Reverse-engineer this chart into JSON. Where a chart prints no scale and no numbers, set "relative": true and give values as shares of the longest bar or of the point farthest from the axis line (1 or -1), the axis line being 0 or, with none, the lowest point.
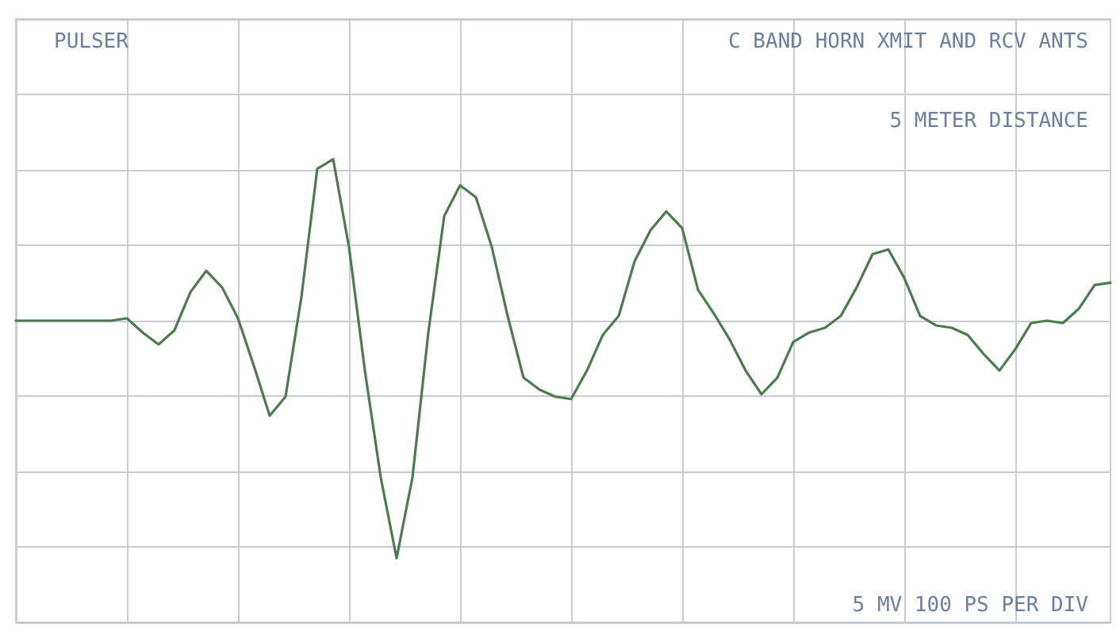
{
  "chart_data": {
    "type": "line",
    "relative": true,
    "grid": true,
    "marker": "none",
    "line_style": "solid",
    "annotations": [
      "PULSER",
      "C BAND HORN XMIT AND RCV ANTS",
      "5 METER DISTANCE",
      "5 MV 100 PS PER DIV"
    ],
    "categories": [
      null,
      null,
      null,
      null,
      null,
      null,
      null,
      null,
      null,
      null,
      null,
      null,
      null,
      null,
      null,
      null,
      null,
      null,
      null,
      null,
      null,
      null,
      null,
      null,
      null,
      null,
      null,
      null,
      null,
      null,
      null,
      null,
      null,
      null,
      null,
      null,
      null,
      null,
      null,
      null,
      null,
      null,
      null,
      null,
      null,
      null,
      null,
      null,
      null,
      null,
      null,
      null,
      null,
      null,
      null,
      null,
      null,
      null,
      null,
      null,
      null,
      null,
      null,
      null,
      null,
      null,
      null,
      null,
      null,
      null
    ],
    "series": [
      {
        "color": "#4a7d4a",
        "values": [
          0,
          0,
          0,
          0,
          0,
          0,
          0,
          0.01,
          -0.05,
          -0.1,
          -0.04,
          0.12,
          0.21,
          0.14,
          0.01,
          -0.19,
          -0.4,
          -0.32,
          0.1,
          0.64,
          0.68,
          0.31,
          -0.21,
          -0.66,
          -1,
          -0.66,
          -0.05,
          0.44,
          0.57,
          0.52,
          0.31,
          0.02,
          -0.24,
          -0.29,
          -0.32,
          -0.33,
          -0.21,
          -0.06,
          0.02,
          0.25,
          0.38,
          0.46,
          0.39,
          0.13,
          0.03,
          -0.08,
          -0.21,
          -0.31,
          -0.24,
          -0.09,
          -0.05,
          -0.03,
          0.02,
          0.14,
          0.28,
          0.3,
          0.18,
          0.02,
          -0.02,
          -0.03,
          -0.06,
          -0.14,
          -0.21,
          -0.12,
          -0.01,
          0,
          -0.01,
          0.05,
          0.15,
          0.16
        ]
      }
    ]
  }
}
